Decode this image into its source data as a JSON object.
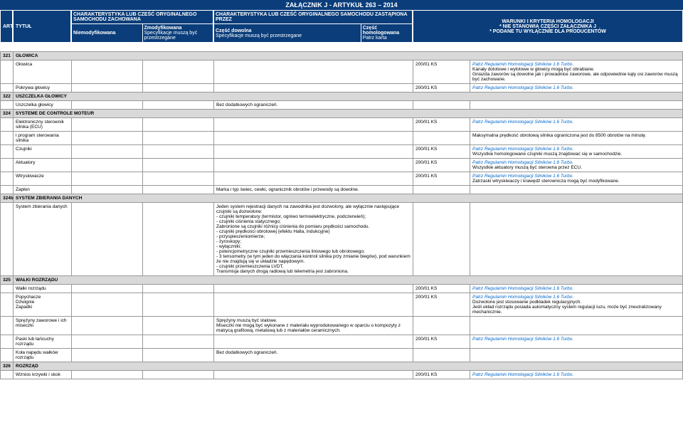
{
  "header": {
    "main_title": "ZAŁĄCZNIK J - ARTYKUŁ 263 – 2014",
    "col_art": "ART.",
    "col_tytul": "TYTUŁ",
    "group1_title": "CHARAKTERYSTYKA LUB CZEŚĆ ORYGINALNEGO SAMOCHODU ZACHOWANA",
    "group1_sub1_b": "Niemodyfikowana",
    "group1_sub2_b": "Zmodyfikowana",
    "group1_sub2_s": "Specyfikacje muszą być przestrzegane",
    "group2_title": "CHARAKTERYSTYKA LUB CZEŚĆ ORYGINALNEGO SAMOCHODU ZASTĄPIONA PRZEZ",
    "group2_sub1_b": "Część dowolna",
    "group2_sub1_s": "Specyfikacje muszą być przestrzegane",
    "group2_sub2_b": "Część homologowana",
    "group2_sub2_s": "Patrz karta",
    "warunki_l1": "WARUNKI I KRYTERIA HOMOLOGACJI",
    "warunki_l2": "* NIE STANOWIĄ CZĘŚCI ZAŁĄCZNIKA J",
    "warunki_l3": "* PODANE TU WYŁĄCZNIE DLA PRODUCENTÓW"
  },
  "ks": "200/01 KS",
  "patrz": "Patrz Regulamin Homologacji Silników 1.6 Turbo.",
  "rows": [
    {
      "t": "section",
      "art": "321",
      "name": "GŁOWICA"
    },
    {
      "t": "row",
      "name": "Głowica",
      "hom": "ks",
      "war": "Kanały dolotowe i wylotowe w głowicy mogą być obrabiane.\nGniazda zaworów są dowolne jak i prowadnice zaworowe, ale odpowiednie kąty osi zaworów muszą być zachowane.",
      "blue": true
    },
    {
      "t": "row",
      "name": "Pokrywa głowicy",
      "hom": "ks",
      "blue": true
    },
    {
      "t": "section",
      "art": "322",
      "name": "USZCZELKA GŁOWICY"
    },
    {
      "t": "row",
      "name": "Uszczelka głowicy",
      "dow": "Bez dodatkowych ograniczeń."
    },
    {
      "t": "section",
      "art": "324",
      "name": "SYSTEME DE CONTROLE MOTEUR"
    },
    {
      "t": "row",
      "name": "Elektroniczny sterownik silnika (ECU)",
      "hom": "ks",
      "blue": true
    },
    {
      "t": "row",
      "name": "i program sterowania silnika",
      "war": "Maksymalna prędkość obrotową silnika ograniczona jest do 8500 obrotów na minutę."
    },
    {
      "t": "row",
      "name": "Czujniki",
      "hom": "ks",
      "war": "Wszystkie homologowane czujniki muszą znajdować się w samochodzie.",
      "blue": true
    },
    {
      "t": "row",
      "name": "Aktuatory",
      "hom": "ks",
      "war": "Wszystkie aktuatory muszą być sterowna przez ECU.",
      "blue": true
    },
    {
      "t": "row",
      "name": "Wtryskiwacze",
      "hom": "ks",
      "war": "Zatrzaski wtryskiwaczy i krawędź sterownicza mogą być modyfikowane.",
      "blue": true
    },
    {
      "t": "row",
      "name": "Zapłon",
      "dow": "Marka i typ świec, cewki, ogranicznik obrotów i przewody są dowolne."
    },
    {
      "t": "section",
      "art": "324b",
      "name": "SYSTEM ZBIERANIA DANYCH"
    },
    {
      "t": "row",
      "name": "System zbierania danych",
      "dow": "Jeden system rejestracji danych na zawodnika jest dozwolony, ale wyłącznie następujące czujniki są dozwolone:\n- czujniki temperatury (termistor, ogniwo termoelektryczne, podczerwień);\n- czujniki ciśnienia statycznego;\nZabronione są czujniki różnicy ciśnienia do pomiaru prędkości samochodu.\n- czujniki prędkości obrotowej (efektu Halla, indukcyjne)\n- przyspieszeniomierze;\n- żyroskopy;\n- wyłączniki;\n- potencjometryczne czujniki przemieszczenia liniowego lub obrotowego;\n- 3 tensometry (w tym jeden do włączania kontroli silnika przy zmianie biegów), pod warunkiem że nie znajdują się w układzie napędowym.\n- czujniki przemieszczenia LVDT.\nTransmisja danych drogą radiową lub telemetria jest zabroniona."
    },
    {
      "t": "section",
      "art": "325",
      "name": "WAŁKI ROZRZĄDU"
    },
    {
      "t": "row",
      "name": "Wałki rozrządu",
      "hom": "ks",
      "blue": true
    },
    {
      "t": "row",
      "name": "Popychacze\nDźwignie\nZapadki",
      "hom": "ks",
      "war": "Dozwolone jest stosowanie podkładek regulacyjnych.\nJeśli układ rozrządu posiada automatyczny system regulacji luzu, może być zneutralizowany mechanicznie.",
      "blue": true
    },
    {
      "t": "row",
      "name": "Sprężyny zaworowe i ich miseczki",
      "dow": "Sprężyny muszą być stalowe.\nMiseczki nie mogą być wykonane z materiału wyprodukowanego w oparciu o kompozyty z matrycą grafitową, metalową lub z materiałów ceramicznych."
    },
    {
      "t": "row",
      "name": "Paski lub łańcuchy rozrządu",
      "hom": "ks",
      "blue": true
    },
    {
      "t": "row",
      "name": "Koła napędu wałków rozrządu",
      "dow": "Bez dodatkowych ograniczeń."
    },
    {
      "t": "section",
      "art": "326",
      "name": "ROZRZĄD"
    },
    {
      "t": "row",
      "name": "Wznios krzywki i skok",
      "hom": "ks",
      "blue": true
    }
  ]
}
